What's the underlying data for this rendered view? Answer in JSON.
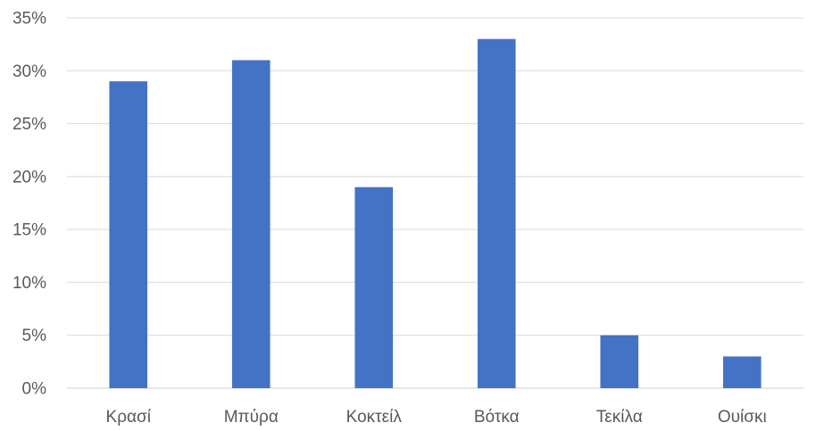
{
  "chart_data": {
    "type": "bar",
    "categories": [
      "Κρασί",
      "Μπύρα",
      "Κοκτείλ",
      "Βότκα",
      "Τεκίλα",
      "Ουίσκι"
    ],
    "values": [
      29,
      31,
      19,
      33,
      5,
      3
    ],
    "ylim": [
      0,
      35
    ],
    "yticks": [
      0,
      5,
      10,
      15,
      20,
      25,
      30,
      35
    ],
    "ytick_labels": [
      "0%",
      "5%",
      "10%",
      "15%",
      "20%",
      "25%",
      "30%",
      "35%"
    ],
    "title": "",
    "xlabel": "",
    "ylabel": "",
    "grid": true,
    "bar_color": "#4472c4"
  }
}
